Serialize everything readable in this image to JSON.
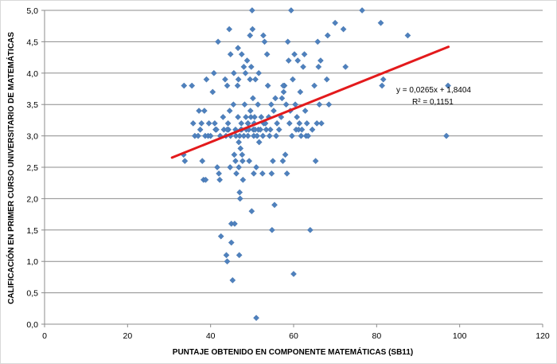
{
  "chart_data": {
    "type": "scatter",
    "xlabel": "PUNTAJE OBTENIDO EN COMPONENTE MATEMÁTICAS (SB11)",
    "ylabel": "CALIFICACIÓN EN PRIMER CURSO UNIVERSITARIO DE MATEMÁTICAS",
    "xlim": [
      0,
      120
    ],
    "ylim": [
      0,
      5
    ],
    "x_ticks": [
      "0",
      "20",
      "40",
      "60",
      "80",
      "100",
      "120"
    ],
    "y_ticks": [
      "0,0",
      "0,5",
      "1,0",
      "1,5",
      "2,0",
      "2,5",
      "3,0",
      "3,5",
      "4,0",
      "4,5",
      "5,0"
    ],
    "grid": "horizontal",
    "series": [
      {
        "marker": "diamond",
        "color": "#4f81bd",
        "points": [
          [
            33.6,
            3.8
          ],
          [
            35.5,
            3.8
          ],
          [
            33.8,
            2.6
          ],
          [
            33.5,
            2.7
          ],
          [
            35.8,
            3.2
          ],
          [
            36.2,
            3.0
          ],
          [
            37.0,
            3.0
          ],
          [
            37.2,
            3.4
          ],
          [
            37.5,
            3.1
          ],
          [
            37.8,
            3.2
          ],
          [
            38.0,
            2.6
          ],
          [
            38.3,
            2.3
          ],
          [
            38.5,
            3.4
          ],
          [
            38.7,
            3.0
          ],
          [
            38.8,
            2.3
          ],
          [
            39.0,
            3.9
          ],
          [
            39.4,
            3.0
          ],
          [
            39.6,
            3.2
          ],
          [
            40.0,
            3.0
          ],
          [
            40.5,
            3.7
          ],
          [
            40.8,
            4.0
          ],
          [
            41.0,
            3.2
          ],
          [
            41.2,
            3.1
          ],
          [
            41.4,
            3.1
          ],
          [
            41.6,
            2.5
          ],
          [
            41.8,
            4.5
          ],
          [
            42.0,
            2.4
          ],
          [
            42.2,
            2.3
          ],
          [
            42.3,
            3.0
          ],
          [
            42.5,
            1.4
          ],
          [
            43.0,
            3.3
          ],
          [
            43.2,
            3.1
          ],
          [
            43.5,
            3.9
          ],
          [
            43.7,
            3.0
          ],
          [
            43.8,
            1.1
          ],
          [
            44.0,
            1.0
          ],
          [
            44.0,
            3.8
          ],
          [
            44.2,
            3.2
          ],
          [
            44.3,
            3.1
          ],
          [
            44.5,
            4.7
          ],
          [
            44.6,
            3.4
          ],
          [
            44.7,
            2.5
          ],
          [
            44.8,
            3.0
          ],
          [
            44.8,
            4.3
          ],
          [
            45.0,
            1.6
          ],
          [
            45.0,
            1.3
          ],
          [
            45.3,
            0.7
          ],
          [
            45.5,
            3.5
          ],
          [
            45.6,
            4.0
          ],
          [
            45.7,
            2.7
          ],
          [
            45.8,
            1.6
          ],
          [
            46.0,
            3.1
          ],
          [
            46.0,
            2.6
          ],
          [
            46.1,
            3.0
          ],
          [
            46.2,
            2.4
          ],
          [
            46.5,
            3.8
          ],
          [
            46.6,
            4.4
          ],
          [
            46.6,
            3.3
          ],
          [
            46.7,
            3.9
          ],
          [
            46.8,
            2.9
          ],
          [
            46.8,
            2.5
          ],
          [
            46.9,
            1.1
          ],
          [
            47.0,
            3.0
          ],
          [
            47.0,
            2.1
          ],
          [
            47.1,
            2.0
          ],
          [
            47.2,
            2.8
          ],
          [
            47.3,
            3.1
          ],
          [
            47.4,
            3.2
          ],
          [
            47.5,
            4.3
          ],
          [
            47.5,
            3.1
          ],
          [
            47.6,
            2.7
          ],
          [
            47.7,
            2.6
          ],
          [
            47.8,
            2.3
          ],
          [
            48.0,
            3.0
          ],
          [
            48.0,
            4.1
          ],
          [
            48.2,
            3.5
          ],
          [
            48.4,
            4.0
          ],
          [
            48.5,
            3.3
          ],
          [
            48.6,
            3.1
          ],
          [
            48.8,
            4.2
          ],
          [
            49.0,
            3.0
          ],
          [
            49.0,
            3.2
          ],
          [
            49.2,
            3.1
          ],
          [
            49.3,
            2.6
          ],
          [
            49.5,
            3.9
          ],
          [
            49.5,
            4.6
          ],
          [
            49.6,
            3.4
          ],
          [
            49.7,
            3.3
          ],
          [
            49.8,
            4.1
          ],
          [
            49.9,
            1.8
          ],
          [
            50.0,
            5.0
          ],
          [
            50.1,
            4.7
          ],
          [
            50.2,
            3.6
          ],
          [
            50.3,
            3.1
          ],
          [
            50.4,
            3.0
          ],
          [
            50.4,
            2.4
          ],
          [
            50.5,
            3.2
          ],
          [
            50.6,
            3.3
          ],
          [
            50.7,
            3.1
          ],
          [
            50.8,
            3.9
          ],
          [
            51.0,
            2.5
          ],
          [
            51.2,
            3.0
          ],
          [
            51.4,
            3.5
          ],
          [
            51.5,
            3.1
          ],
          [
            51.6,
            4.0
          ],
          [
            51.7,
            2.9
          ],
          [
            52.0,
            3.1
          ],
          [
            52.2,
            3.3
          ],
          [
            52.5,
            2.4
          ],
          [
            52.6,
            3.0
          ],
          [
            52.7,
            4.6
          ],
          [
            52.8,
            3.2
          ],
          [
            53.0,
            4.5
          ],
          [
            53.2,
            3.2
          ],
          [
            53.4,
            3.1
          ],
          [
            53.6,
            4.3
          ],
          [
            53.8,
            3.8
          ],
          [
            54.0,
            3.3
          ],
          [
            54.2,
            3.0
          ],
          [
            54.4,
            3.1
          ],
          [
            54.6,
            3.5
          ],
          [
            54.7,
            2.4
          ],
          [
            54.8,
            1.5
          ],
          [
            55.0,
            2.6
          ],
          [
            55.2,
            3.4
          ],
          [
            55.4,
            1.9
          ],
          [
            55.6,
            3.6
          ],
          [
            55.8,
            3.0
          ],
          [
            56.0,
            3.2
          ],
          [
            56.5,
            3.1
          ],
          [
            57.0,
            3.3
          ],
          [
            57.2,
            3.6
          ],
          [
            57.4,
            2.6
          ],
          [
            57.6,
            3.7
          ],
          [
            57.8,
            3.8
          ],
          [
            58.0,
            2.7
          ],
          [
            58.2,
            3.5
          ],
          [
            58.4,
            2.4
          ],
          [
            58.6,
            4.5
          ],
          [
            58.8,
            4.2
          ],
          [
            59.0,
            3.2
          ],
          [
            59.2,
            3.4
          ],
          [
            59.4,
            5.0
          ],
          [
            59.6,
            3.0
          ],
          [
            59.8,
            3.9
          ],
          [
            60.0,
            0.8
          ],
          [
            60.2,
            4.3
          ],
          [
            60.4,
            3.5
          ],
          [
            60.6,
            3.1
          ],
          [
            60.8,
            3.3
          ],
          [
            61.0,
            4.2
          ],
          [
            61.2,
            3.1
          ],
          [
            61.4,
            3.2
          ],
          [
            61.6,
            3.7
          ],
          [
            61.8,
            3.0
          ],
          [
            62.0,
            3.1
          ],
          [
            62.3,
            4.1
          ],
          [
            62.6,
            4.3
          ],
          [
            62.8,
            3.4
          ],
          [
            63.0,
            3.0
          ],
          [
            63.2,
            3.2
          ],
          [
            63.5,
            3.0
          ],
          [
            64.0,
            1.5
          ],
          [
            64.5,
            3.1
          ],
          [
            65.0,
            3.8
          ],
          [
            65.3,
            2.6
          ],
          [
            65.6,
            3.2
          ],
          [
            65.8,
            4.5
          ],
          [
            66.0,
            4.1
          ],
          [
            66.2,
            3.5
          ],
          [
            66.5,
            4.2
          ],
          [
            66.7,
            3.2
          ],
          [
            68.0,
            3.9
          ],
          [
            68.2,
            4.6
          ],
          [
            68.5,
            3.5
          ],
          [
            70.0,
            4.8
          ],
          [
            72.0,
            4.7
          ],
          [
            72.5,
            4.1
          ],
          [
            76.5,
            5.0
          ],
          [
            81.0,
            4.8
          ],
          [
            81.3,
            3.8
          ],
          [
            81.6,
            3.9
          ],
          [
            87.5,
            4.6
          ],
          [
            96.8,
            3.0
          ],
          [
            97.2,
            3.8
          ],
          [
            51.0,
            0.1
          ],
          [
            57.5,
            3.8
          ],
          [
            49.0,
            3.2
          ],
          [
            44.0,
            3.1
          ]
        ]
      }
    ],
    "trendline": {
      "type": "linear",
      "slope": 0.0265,
      "intercept": 1.8404,
      "x_range": [
        30.7,
        97.3
      ],
      "color": "#e31a1c",
      "equation_label": "y = 0,0265x + 1,8404",
      "r2_label": "R² = 0,1151"
    }
  }
}
